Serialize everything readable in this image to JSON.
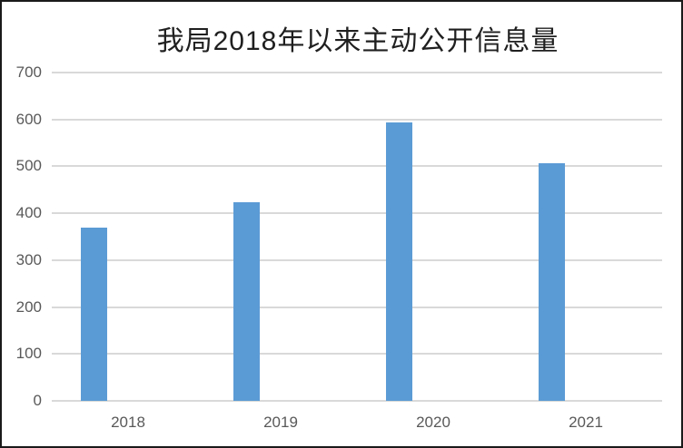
{
  "chart_data": {
    "type": "bar",
    "title": "我局2018年以来主动公开信息量",
    "categories": [
      "2018",
      "2019",
      "2020",
      "2021"
    ],
    "values": [
      370,
      423,
      593,
      506
    ],
    "xlabel": "",
    "ylabel": "",
    "ylim": [
      0,
      700
    ],
    "ytick_step": 100,
    "yticks": [
      0,
      100,
      200,
      300,
      400,
      500,
      600,
      700
    ],
    "grid": true,
    "legend": "none",
    "colors": {
      "bar": "#5b9bd5",
      "gridline": "#d9d9d9",
      "axis_text": "#595959",
      "title_text": "#1f1f1f",
      "background": "#ffffff",
      "border": "#1a1a1a"
    }
  }
}
